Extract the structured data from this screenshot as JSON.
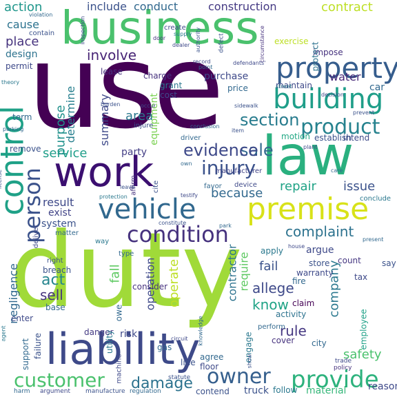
{
  "words": [
    {
      "text": "duty",
      "color": "#a0da39"
    },
    {
      "text": "use",
      "color": "#440154"
    },
    {
      "text": "business",
      "color": "#4ac16d"
    },
    {
      "text": "law",
      "color": "#2ab07f"
    },
    {
      "text": "liability",
      "color": "#3e4a89"
    },
    {
      "text": "work",
      "color": "#3b0f70"
    },
    {
      "text": "control",
      "color": "#1fa187"
    },
    {
      "text": "premise",
      "color": "#d8e219"
    },
    {
      "text": "vehicle",
      "color": "#31688e"
    },
    {
      "text": "property",
      "color": "#365d8d"
    },
    {
      "text": "building",
      "color": "#1f9e89"
    },
    {
      "text": "condition",
      "color": "#46327e"
    },
    {
      "text": "person",
      "color": "#3b528b"
    },
    {
      "text": "product",
      "color": "#26828e"
    },
    {
      "text": "customer",
      "color": "#4ac16d"
    },
    {
      "text": "owner",
      "color": "#355f8d"
    },
    {
      "text": "provide",
      "color": "#2db27d"
    },
    {
      "text": "injury",
      "color": "#3b528b"
    },
    {
      "text": "section",
      "color": "#287c8e"
    },
    {
      "text": "damage",
      "color": "#2c728e"
    },
    {
      "text": "sale",
      "color": "#31688e"
    },
    {
      "text": "evidence",
      "color": "#3e4989"
    },
    {
      "text": "complaint",
      "color": "#2c728e"
    },
    {
      "text": "action",
      "color": "#1f968b"
    },
    {
      "text": "include",
      "color": "#3b528b"
    },
    {
      "text": "conduct",
      "color": "#31688e"
    },
    {
      "text": "construction",
      "color": "#443983"
    },
    {
      "text": "contract",
      "color": "#bddf26"
    },
    {
      "text": "place",
      "color": "#46337e"
    },
    {
      "text": "cause",
      "color": "#2c728e"
    },
    {
      "text": "involve",
      "color": "#482576"
    },
    {
      "text": "determine",
      "color": "#277f8e"
    },
    {
      "text": "purpose",
      "color": "#21918c"
    },
    {
      "text": "summary",
      "color": "#3e4989"
    },
    {
      "text": "area",
      "color": "#2a788e"
    },
    {
      "text": "equipment",
      "color": "#7ad151"
    },
    {
      "text": "service",
      "color": "#1f9e89"
    },
    {
      "text": "party",
      "color": "#433e85"
    },
    {
      "text": "repair",
      "color": "#20a386"
    },
    {
      "text": "issue",
      "color": "#3b528b"
    },
    {
      "text": "because",
      "color": "#31688e"
    },
    {
      "text": "result",
      "color": "#3e4989"
    },
    {
      "text": "exist",
      "color": "#414487"
    },
    {
      "text": "system",
      "color": "#3b528b"
    },
    {
      "text": "negligence",
      "color": "#31688e"
    },
    {
      "text": "act",
      "color": "#25858e"
    },
    {
      "text": "sell",
      "color": "#46337e"
    },
    {
      "text": "fall",
      "color": "#5ec962"
    },
    {
      "text": "owe",
      "color": "#31688e"
    },
    {
      "text": "operate",
      "color": "#bddf26"
    },
    {
      "text": "operation",
      "color": "#3e4989"
    },
    {
      "text": "contractor",
      "color": "#2c728e"
    },
    {
      "text": "require",
      "color": "#5ec962"
    },
    {
      "text": "allege",
      "color": "#3e4989"
    },
    {
      "text": "know",
      "color": "#20a386"
    },
    {
      "text": "fail",
      "color": "#3b528b"
    },
    {
      "text": "company",
      "color": "#2a788e"
    },
    {
      "text": "rule",
      "color": "#453781"
    },
    {
      "text": "safety",
      "color": "#4ac16d"
    },
    {
      "text": "truck",
      "color": "#3b528b"
    },
    {
      "text": "material",
      "color": "#35b779"
    },
    {
      "text": "water",
      "color": "#482878"
    },
    {
      "text": "maintain",
      "color": "#3e4989"
    },
    {
      "text": "car",
      "color": "#31688e"
    },
    {
      "text": "purchase",
      "color": "#3e4989"
    },
    {
      "text": "design",
      "color": "#2c728e"
    },
    {
      "text": "charge",
      "color": "#46327e"
    },
    {
      "text": "grant",
      "color": "#2a788e"
    },
    {
      "text": "cost",
      "color": "#3e4989"
    },
    {
      "text": "price",
      "color": "#31688e"
    },
    {
      "text": "motion",
      "color": "#22a884"
    },
    {
      "text": "intend",
      "color": "#3e4989"
    },
    {
      "text": "establish",
      "color": "#3b528b"
    },
    {
      "text": "manufacturer",
      "color": "#414487"
    },
    {
      "text": "driver",
      "color": "#31688e"
    },
    {
      "text": "apply",
      "color": "#2a788e"
    },
    {
      "text": "argue",
      "color": "#3e4989"
    },
    {
      "text": "count",
      "color": "#453781"
    },
    {
      "text": "store",
      "color": "#3b528b"
    },
    {
      "text": "warranty",
      "color": "#3e4989"
    },
    {
      "text": "fire",
      "color": "#31688e"
    },
    {
      "text": "claim",
      "color": "#440154"
    },
    {
      "text": "activity",
      "color": "#2c728e"
    },
    {
      "text": "employee",
      "color": "#1fa187"
    },
    {
      "text": "risk",
      "color": "#3e4989"
    },
    {
      "text": "danger",
      "color": "#443a83"
    },
    {
      "text": "gas",
      "color": "#31688e"
    },
    {
      "text": "utility",
      "color": "#2a788e"
    },
    {
      "text": "consider",
      "color": "#46327e"
    },
    {
      "text": "breach",
      "color": "#3b528b"
    },
    {
      "text": "base",
      "color": "#31688e"
    },
    {
      "text": "support",
      "color": "#31688e"
    },
    {
      "text": "enter",
      "color": "#3e4989"
    },
    {
      "text": "failure",
      "color": "#3b528b"
    },
    {
      "text": "engage",
      "color": "#2a788e"
    },
    {
      "text": "agree",
      "color": "#31688e"
    },
    {
      "text": "floor",
      "color": "#3e4989"
    },
    {
      "text": "line",
      "color": "#3b528b"
    },
    {
      "text": "cover",
      "color": "#46327e"
    },
    {
      "text": "city",
      "color": "#31688e"
    },
    {
      "text": "say",
      "color": "#3b528b"
    },
    {
      "text": "tax",
      "color": "#3e4989"
    },
    {
      "text": "reason",
      "color": "#3e4989"
    },
    {
      "text": "follow",
      "color": "#2a788e"
    },
    {
      "text": "contend",
      "color": "#3b528b"
    },
    {
      "text": "exercise",
      "color": "#bddf26"
    },
    {
      "text": "impose",
      "color": "#46327e"
    },
    {
      "text": "protect",
      "color": "#2c728e"
    },
    {
      "text": "remove",
      "color": "#3b528b"
    },
    {
      "text": "term",
      "color": "#31688e"
    },
    {
      "text": "lease",
      "color": "#46337e"
    },
    {
      "text": "create",
      "color": "#3e4989"
    },
    {
      "text": "contain",
      "color": "#3b528b"
    },
    {
      "text": "permit",
      "color": "#3e4989"
    },
    {
      "text": "injure",
      "color": "#3b528b"
    },
    {
      "text": "favor",
      "color": "#31688e"
    },
    {
      "text": "device",
      "color": "#3e4989"
    },
    {
      "text": "conclude",
      "color": "#2a788e"
    },
    {
      "text": "affirm",
      "color": "#46327e"
    },
    {
      "text": "cite",
      "color": "#3b528b"
    },
    {
      "text": "matter",
      "color": "#31688e"
    },
    {
      "text": "deliver",
      "color": "#3e4989"
    },
    {
      "text": "type",
      "color": "#31688e"
    },
    {
      "text": "right",
      "color": "#3b528b"
    },
    {
      "text": "way",
      "color": "#2a788e"
    },
    {
      "text": "perform",
      "color": "#31688e"
    },
    {
      "text": "machine",
      "color": "#3e4989"
    },
    {
      "text": "statute",
      "color": "#3b528b"
    },
    {
      "text": "harm",
      "color": "#31688e"
    },
    {
      "text": "argument",
      "color": "#3e4989"
    },
    {
      "text": "manufacture",
      "color": "#3b528b"
    },
    {
      "text": "regulation",
      "color": "#31688e"
    },
    {
      "text": "trade",
      "color": "#3e4989"
    },
    {
      "text": "policy",
      "color": "#46327e"
    },
    {
      "text": "sidewalk",
      "color": "#3b528b"
    },
    {
      "text": "street",
      "color": "#2a788e"
    },
    {
      "text": "house",
      "color": "#3e4989"
    },
    {
      "text": "item",
      "color": "#3b528b"
    },
    {
      "text": "park",
      "color": "#31688e"
    },
    {
      "text": "occur",
      "color": "#3e4989"
    },
    {
      "text": "point",
      "color": "#31688e"
    },
    {
      "text": "door",
      "color": "#46327e"
    },
    {
      "text": "supply",
      "color": "#2a788e"
    },
    {
      "text": "defect",
      "color": "#3b528b"
    },
    {
      "text": "dealer",
      "color": "#3e4989"
    },
    {
      "text": "violation",
      "color": "#31688e"
    },
    {
      "text": "inspection",
      "color": "#3e4989"
    },
    {
      "text": "authority",
      "color": "#3b528b"
    },
    {
      "text": "circumstance",
      "color": "#46327e"
    },
    {
      "text": "defendants'",
      "color": "#3e4989"
    },
    {
      "text": "theory",
      "color": "#2a788e"
    },
    {
      "text": "burden",
      "color": "#3b528b"
    },
    {
      "text": "conclusion",
      "color": "#31688e"
    },
    {
      "text": "decision",
      "color": "#3e4989"
    },
    {
      "text": "prevent",
      "color": "#3b528b"
    },
    {
      "text": "testify",
      "color": "#3e4989"
    },
    {
      "text": "own",
      "color": "#31688e"
    },
    {
      "text": "leave",
      "color": "#3b528b"
    },
    {
      "text": "parking",
      "color": "#31688e"
    },
    {
      "text": "record",
      "color": "#3e4989"
    },
    {
      "text": "constitute",
      "color": "#3b528b"
    },
    {
      "text": "present",
      "color": "#31688e"
    },
    {
      "text": "protection",
      "color": "#2a788e"
    },
    {
      "text": "plant",
      "color": "#3e4989"
    },
    {
      "text": "care",
      "color": "#31688e"
    },
    {
      "text": "show",
      "color": "#3b528b"
    },
    {
      "text": "circuit",
      "color": "#3e4989"
    },
    {
      "text": "knowledge",
      "color": "#31688e"
    },
    {
      "text": "license",
      "color": "#3b528b"
    },
    {
      "text": "agent",
      "color": "#2a788e"
    }
  ]
}
